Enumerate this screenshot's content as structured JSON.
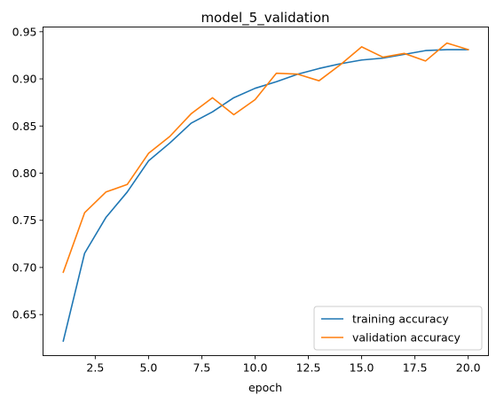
{
  "chart_data": {
    "type": "line",
    "title": "model_5_validation",
    "xlabel": "epoch",
    "ylabel": "",
    "xlim": [
      0.05,
      20.95
    ],
    "ylim": [
      0.6065,
      0.955
    ],
    "xticks": [
      2.5,
      5.0,
      7.5,
      10.0,
      12.5,
      15.0,
      17.5,
      20.0
    ],
    "xtick_labels": [
      "2.5",
      "5.0",
      "7.5",
      "10.0",
      "12.5",
      "15.0",
      "17.5",
      "20.0"
    ],
    "yticks": [
      0.65,
      0.7,
      0.75,
      0.8,
      0.85,
      0.9,
      0.95
    ],
    "ytick_labels": [
      "0.65",
      "0.70",
      "0.75",
      "0.80",
      "0.85",
      "0.90",
      "0.95"
    ],
    "grid": false,
    "legend_position": "lower-right",
    "x": [
      1,
      2,
      3,
      4,
      5,
      6,
      7,
      8,
      9,
      10,
      11,
      12,
      13,
      14,
      15,
      16,
      17,
      18,
      19,
      20
    ],
    "series": [
      {
        "name": "training accuracy",
        "color": "#1f77b4",
        "values": [
          0.622,
          0.715,
          0.753,
          0.78,
          0.813,
          0.832,
          0.853,
          0.865,
          0.88,
          0.89,
          0.897,
          0.905,
          0.911,
          0.916,
          0.92,
          0.922,
          0.926,
          0.93,
          0.931,
          0.931
        ]
      },
      {
        "name": "validation accuracy",
        "color": "#ff7f0e",
        "values": [
          0.695,
          0.758,
          0.78,
          0.788,
          0.821,
          0.839,
          0.863,
          0.88,
          0.862,
          0.878,
          0.906,
          0.905,
          0.898,
          0.915,
          0.934,
          0.923,
          0.927,
          0.919,
          0.938,
          0.931
        ]
      }
    ]
  }
}
